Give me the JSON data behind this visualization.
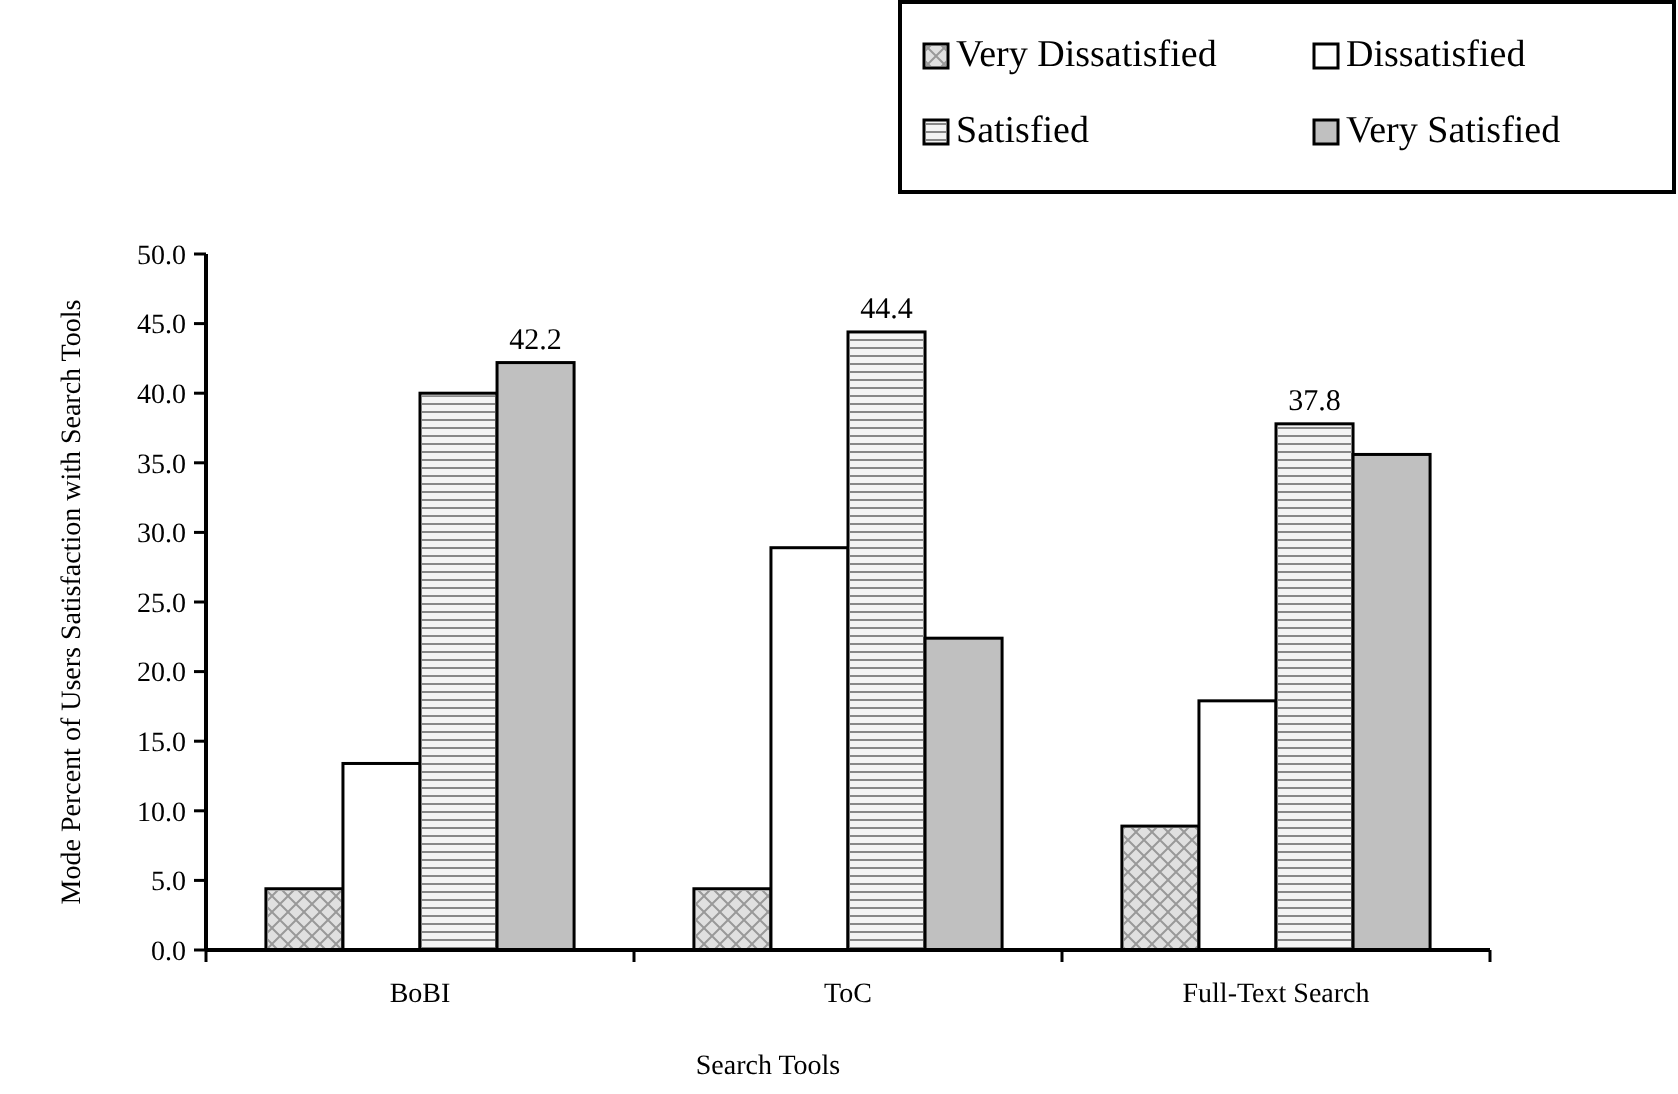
{
  "chart_data": {
    "type": "bar",
    "xlabel": "Search Tools",
    "ylabel": "Mode Percent of Users Satisfaction with Search Tools",
    "categories": [
      "BoBI",
      "ToC",
      "Full-Text Search"
    ],
    "series": [
      {
        "name": "Very Dissatisfied",
        "color": "#e0e0e0",
        "values": [
          4.4,
          4.4,
          8.9
        ]
      },
      {
        "name": "Dissatisfied",
        "color": "#ffffff",
        "values": [
          13.4,
          28.9,
          17.9
        ]
      },
      {
        "name": "Satisfied",
        "color": "#f4f4f4",
        "values": [
          40.0,
          44.4,
          37.8
        ],
        "value_labels": [
          null,
          "44.4",
          "37.8"
        ]
      },
      {
        "name": "Very Satisfied",
        "color": "#c0c0c0",
        "values": [
          42.2,
          22.4,
          35.6
        ],
        "value_labels": [
          "42.2",
          null,
          null
        ]
      }
    ],
    "ylim": [
      0,
      50
    ],
    "yticks": [
      "0.0",
      "5.0",
      "10.0",
      "15.0",
      "20.0",
      "25.0",
      "30.0",
      "35.0",
      "40.0",
      "45.0",
      "50.0"
    ],
    "legend": "top right"
  }
}
